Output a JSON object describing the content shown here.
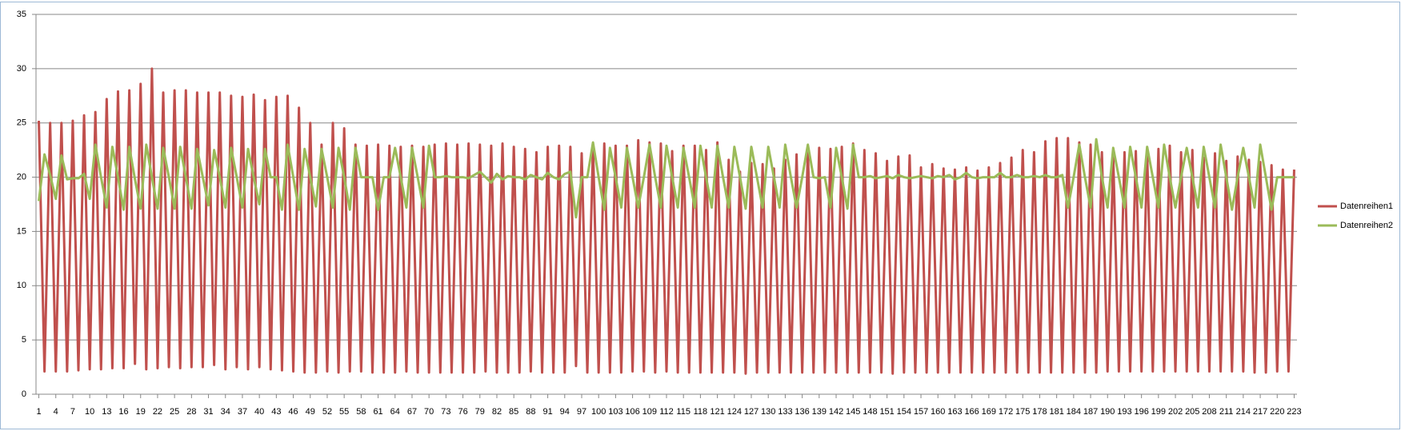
{
  "chart_data": {
    "type": "line",
    "x": [
      1,
      2,
      3,
      4,
      5,
      6,
      7,
      8,
      9,
      10,
      11,
      12,
      13,
      14,
      15,
      16,
      17,
      18,
      19,
      20,
      21,
      22,
      23,
      24,
      25,
      26,
      27,
      28,
      29,
      30,
      31,
      32,
      33,
      34,
      35,
      36,
      37,
      38,
      39,
      40,
      41,
      42,
      43,
      44,
      45,
      46,
      47,
      48,
      49,
      50,
      51,
      52,
      53,
      54,
      55,
      56,
      57,
      58,
      59,
      60,
      61,
      62,
      63,
      64,
      65,
      66,
      67,
      68,
      69,
      70,
      71,
      72,
      73,
      74,
      75,
      76,
      77,
      78,
      79,
      80,
      81,
      82,
      83,
      84,
      85,
      86,
      87,
      88,
      89,
      90,
      91,
      92,
      93,
      94,
      95,
      96,
      97,
      98,
      99,
      100,
      101,
      102,
      103,
      104,
      105,
      106,
      107,
      108,
      109,
      110,
      111,
      112,
      113,
      114,
      115,
      116,
      117,
      118,
      119,
      120,
      121,
      122,
      123,
      124,
      125,
      126,
      127,
      128,
      129,
      130,
      131,
      132,
      133,
      134,
      135,
      136,
      137,
      138,
      139,
      140,
      141,
      142,
      143,
      144,
      145,
      146,
      147,
      148,
      149,
      150,
      151,
      152,
      153,
      154,
      155,
      156,
      157,
      158,
      159,
      160,
      161,
      162,
      163,
      164,
      165,
      166,
      167,
      168,
      169,
      170,
      171,
      172,
      173,
      174,
      175,
      176,
      177,
      178,
      179,
      180,
      181,
      182,
      183,
      184,
      185,
      186,
      187,
      188,
      189,
      190,
      191,
      192,
      193,
      194,
      195,
      196,
      197,
      198,
      199,
      200,
      201,
      202,
      203,
      204,
      205,
      206,
      207,
      208,
      209,
      210,
      211,
      212,
      213,
      214,
      215,
      216,
      217,
      218,
      219,
      220,
      221,
      222,
      223
    ],
    "xlim": [
      0.5,
      223.5
    ],
    "xticks": [
      1,
      4,
      7,
      10,
      13,
      16,
      19,
      22,
      25,
      28,
      31,
      34,
      37,
      40,
      43,
      46,
      49,
      52,
      55,
      58,
      61,
      64,
      67,
      70,
      73,
      76,
      79,
      82,
      85,
      88,
      91,
      94,
      97,
      100,
      103,
      106,
      109,
      112,
      115,
      118,
      121,
      124,
      127,
      130,
      133,
      136,
      139,
      142,
      145,
      148,
      151,
      154,
      157,
      160,
      163,
      166,
      169,
      172,
      175,
      178,
      181,
      184,
      187,
      190,
      193,
      196,
      199,
      202,
      205,
      208,
      211,
      214,
      217,
      220,
      223
    ],
    "ylim": [
      0,
      35
    ],
    "yticks": [
      0,
      5,
      10,
      15,
      20,
      25,
      30,
      35
    ],
    "grid": true,
    "legend": "right",
    "series": [
      {
        "name": "Datenreihen1",
        "color": "#c0504d",
        "values": [
          25.2,
          2.1,
          25,
          2.1,
          25,
          2.1,
          25.2,
          2.2,
          25.7,
          2.3,
          26,
          2.3,
          27.2,
          2.4,
          27.9,
          2.4,
          28,
          2.8,
          28.6,
          2.3,
          30,
          2.4,
          27.8,
          2.5,
          28,
          2.4,
          28,
          2.5,
          27.8,
          2.5,
          27.8,
          2.7,
          27.8,
          2.3,
          27.5,
          2.5,
          27.4,
          2.3,
          27.6,
          2.5,
          27.1,
          2.3,
          27.4,
          2.2,
          27.5,
          2.1,
          26.4,
          2,
          25,
          2,
          23,
          2.1,
          25,
          2,
          24.5,
          2.1,
          23,
          2.1,
          22.9,
          2,
          23,
          2,
          22.9,
          2,
          22.8,
          2.1,
          22.9,
          2,
          22.8,
          2,
          23,
          2,
          23.1,
          2,
          23,
          2,
          23.1,
          2,
          23,
          2.1,
          22.9,
          2,
          23.1,
          2,
          22.8,
          2,
          22.6,
          2.1,
          22.3,
          2,
          22.8,
          2,
          22.9,
          2,
          22.8,
          2.6,
          22.2,
          2,
          22.9,
          2,
          23.1,
          2,
          22.9,
          2,
          22.9,
          2.1,
          23.4,
          2.1,
          23.2,
          2,
          23.1,
          2.1,
          22.4,
          2,
          22.9,
          2,
          22.9,
          2,
          22.5,
          2,
          23.2,
          2,
          21.6,
          2,
          20.5,
          1.9,
          21.3,
          2,
          21.2,
          2,
          20.8,
          2,
          21.6,
          2,
          22.1,
          2,
          22.7,
          2,
          22.7,
          2,
          22.6,
          2,
          22.8,
          2,
          23.1,
          2,
          22.5,
          2,
          22.2,
          2,
          21.5,
          1.9,
          21.9,
          2,
          22,
          2,
          20.9,
          2,
          21.2,
          2,
          20.8,
          2,
          20.7,
          2,
          20.9,
          2,
          20.6,
          2,
          20.9,
          2,
          21.3,
          2,
          21.8,
          2,
          22.5,
          2,
          22.3,
          2,
          23.3,
          2,
          23.6,
          2,
          23.6,
          2,
          23.2,
          2,
          23,
          2,
          22.3,
          2.1,
          21.9,
          2.1,
          22.3,
          2.1,
          22.4,
          2.1,
          22.2,
          2.1,
          22.6,
          2.1,
          22.9,
          2.1,
          22.3,
          2.1,
          22.5,
          2.1,
          21.8,
          2.1,
          22.2,
          2.1,
          21.5,
          2.1,
          21.9,
          2.1,
          21.6,
          2,
          21.4,
          2,
          21.1,
          2.1,
          20.7,
          2.1,
          20.7
        ]
      },
      {
        "name": "Datenreihen2",
        "color": "#9bbb59",
        "values": [
          17.8,
          22.1,
          20.2,
          18,
          22,
          19.8,
          19.9,
          19.9,
          20.3,
          18,
          23,
          20,
          17.2,
          22.8,
          20,
          17,
          22.8,
          19.8,
          17.1,
          23,
          20,
          17.1,
          22.7,
          20,
          17.1,
          22.8,
          20,
          17.1,
          22.6,
          20,
          17.4,
          22.5,
          20,
          17.2,
          22.7,
          20,
          17.2,
          22.6,
          20,
          17.5,
          22.6,
          20,
          20,
          17,
          23,
          20,
          17,
          22.6,
          20,
          17.3,
          22.6,
          20,
          17.2,
          22.7,
          20,
          17,
          22.7,
          20,
          20,
          20,
          17,
          20,
          20,
          22.7,
          20,
          17.2,
          22.7,
          20,
          17.2,
          22.9,
          20,
          20,
          20.1,
          20,
          20,
          20,
          19.9,
          20.2,
          20.5,
          20,
          19.5,
          20.3,
          19.8,
          20.1,
          20,
          20,
          19.8,
          20.2,
          20,
          19.8,
          20.4,
          20,
          19.8,
          20.3,
          20.5,
          16.3,
          20,
          20,
          23.2,
          20,
          17,
          22.7,
          20,
          17.2,
          22.7,
          20,
          17.2,
          20,
          23,
          20,
          17.2,
          22.9,
          20,
          17.2,
          22.7,
          20,
          17.2,
          22.9,
          20,
          17.2,
          22.9,
          20,
          17.2,
          22.8,
          20,
          17.1,
          22.8,
          20,
          17.2,
          22.8,
          20,
          17.2,
          23,
          20,
          17.2,
          20,
          23,
          20,
          19.9,
          20,
          17.2,
          22.7,
          20,
          17.1,
          23,
          20,
          20,
          20.1,
          19.9,
          20,
          20.1,
          19.9,
          20.2,
          20,
          19.9,
          20,
          20.1,
          20,
          19.9,
          20.1,
          20,
          20.2,
          19.8,
          20,
          20.4,
          20,
          19.9,
          20,
          20,
          20,
          20.4,
          20,
          20,
          20.2,
          20,
          20,
          20.1,
          20,
          20.2,
          20,
          20,
          20.2,
          17.2,
          20,
          23,
          20,
          17.2,
          23.5,
          20,
          17.2,
          22.7,
          20,
          17.2,
          22.8,
          20,
          17.2,
          22.8,
          20,
          17.2,
          23,
          20,
          17.2,
          20,
          22.7,
          20,
          17.2,
          22.8,
          20,
          17.2,
          23,
          20,
          17,
          20,
          22.7,
          20,
          17.2,
          23,
          20,
          17,
          20,
          20,
          20,
          20
        ]
      }
    ]
  }
}
